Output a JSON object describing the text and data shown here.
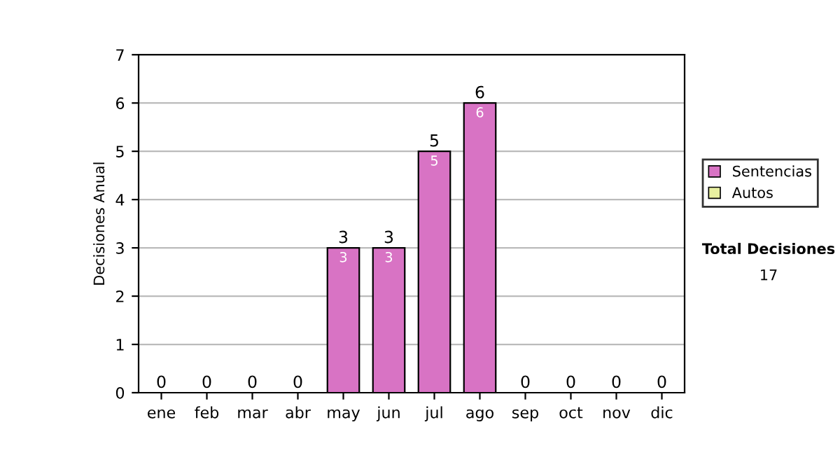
{
  "chart_data": {
    "type": "bar",
    "ylabel": "Decisiones Anual",
    "categories": [
      "ene",
      "feb",
      "mar",
      "abr",
      "may",
      "jun",
      "jul",
      "ago",
      "sep",
      "oct",
      "nov",
      "dic"
    ],
    "stacked": true,
    "series": [
      {
        "name": "Sentencias",
        "color": "#d873c4",
        "values": [
          0,
          0,
          0,
          0,
          3,
          3,
          5,
          6,
          0,
          0,
          0,
          0
        ],
        "value_labels": [
          null,
          null,
          null,
          null,
          "3",
          "3",
          "5",
          "6",
          null,
          null,
          null,
          null
        ]
      },
      {
        "name": "Autos",
        "color": "#e8f0a0",
        "values": [
          0,
          0,
          0,
          0,
          0,
          0,
          0,
          0,
          0,
          0,
          0,
          0
        ]
      }
    ],
    "totals": [
      "0",
      "0",
      "0",
      "0",
      "3",
      "3",
      "5",
      "6",
      "0",
      "0",
      "0",
      "0"
    ],
    "ylim": [
      0,
      7
    ],
    "yticks": [
      0,
      1,
      2,
      3,
      4,
      5,
      6,
      7
    ],
    "grid": "y",
    "legend": "right",
    "annotations": [
      "Total Decisiones",
      "17"
    ]
  }
}
